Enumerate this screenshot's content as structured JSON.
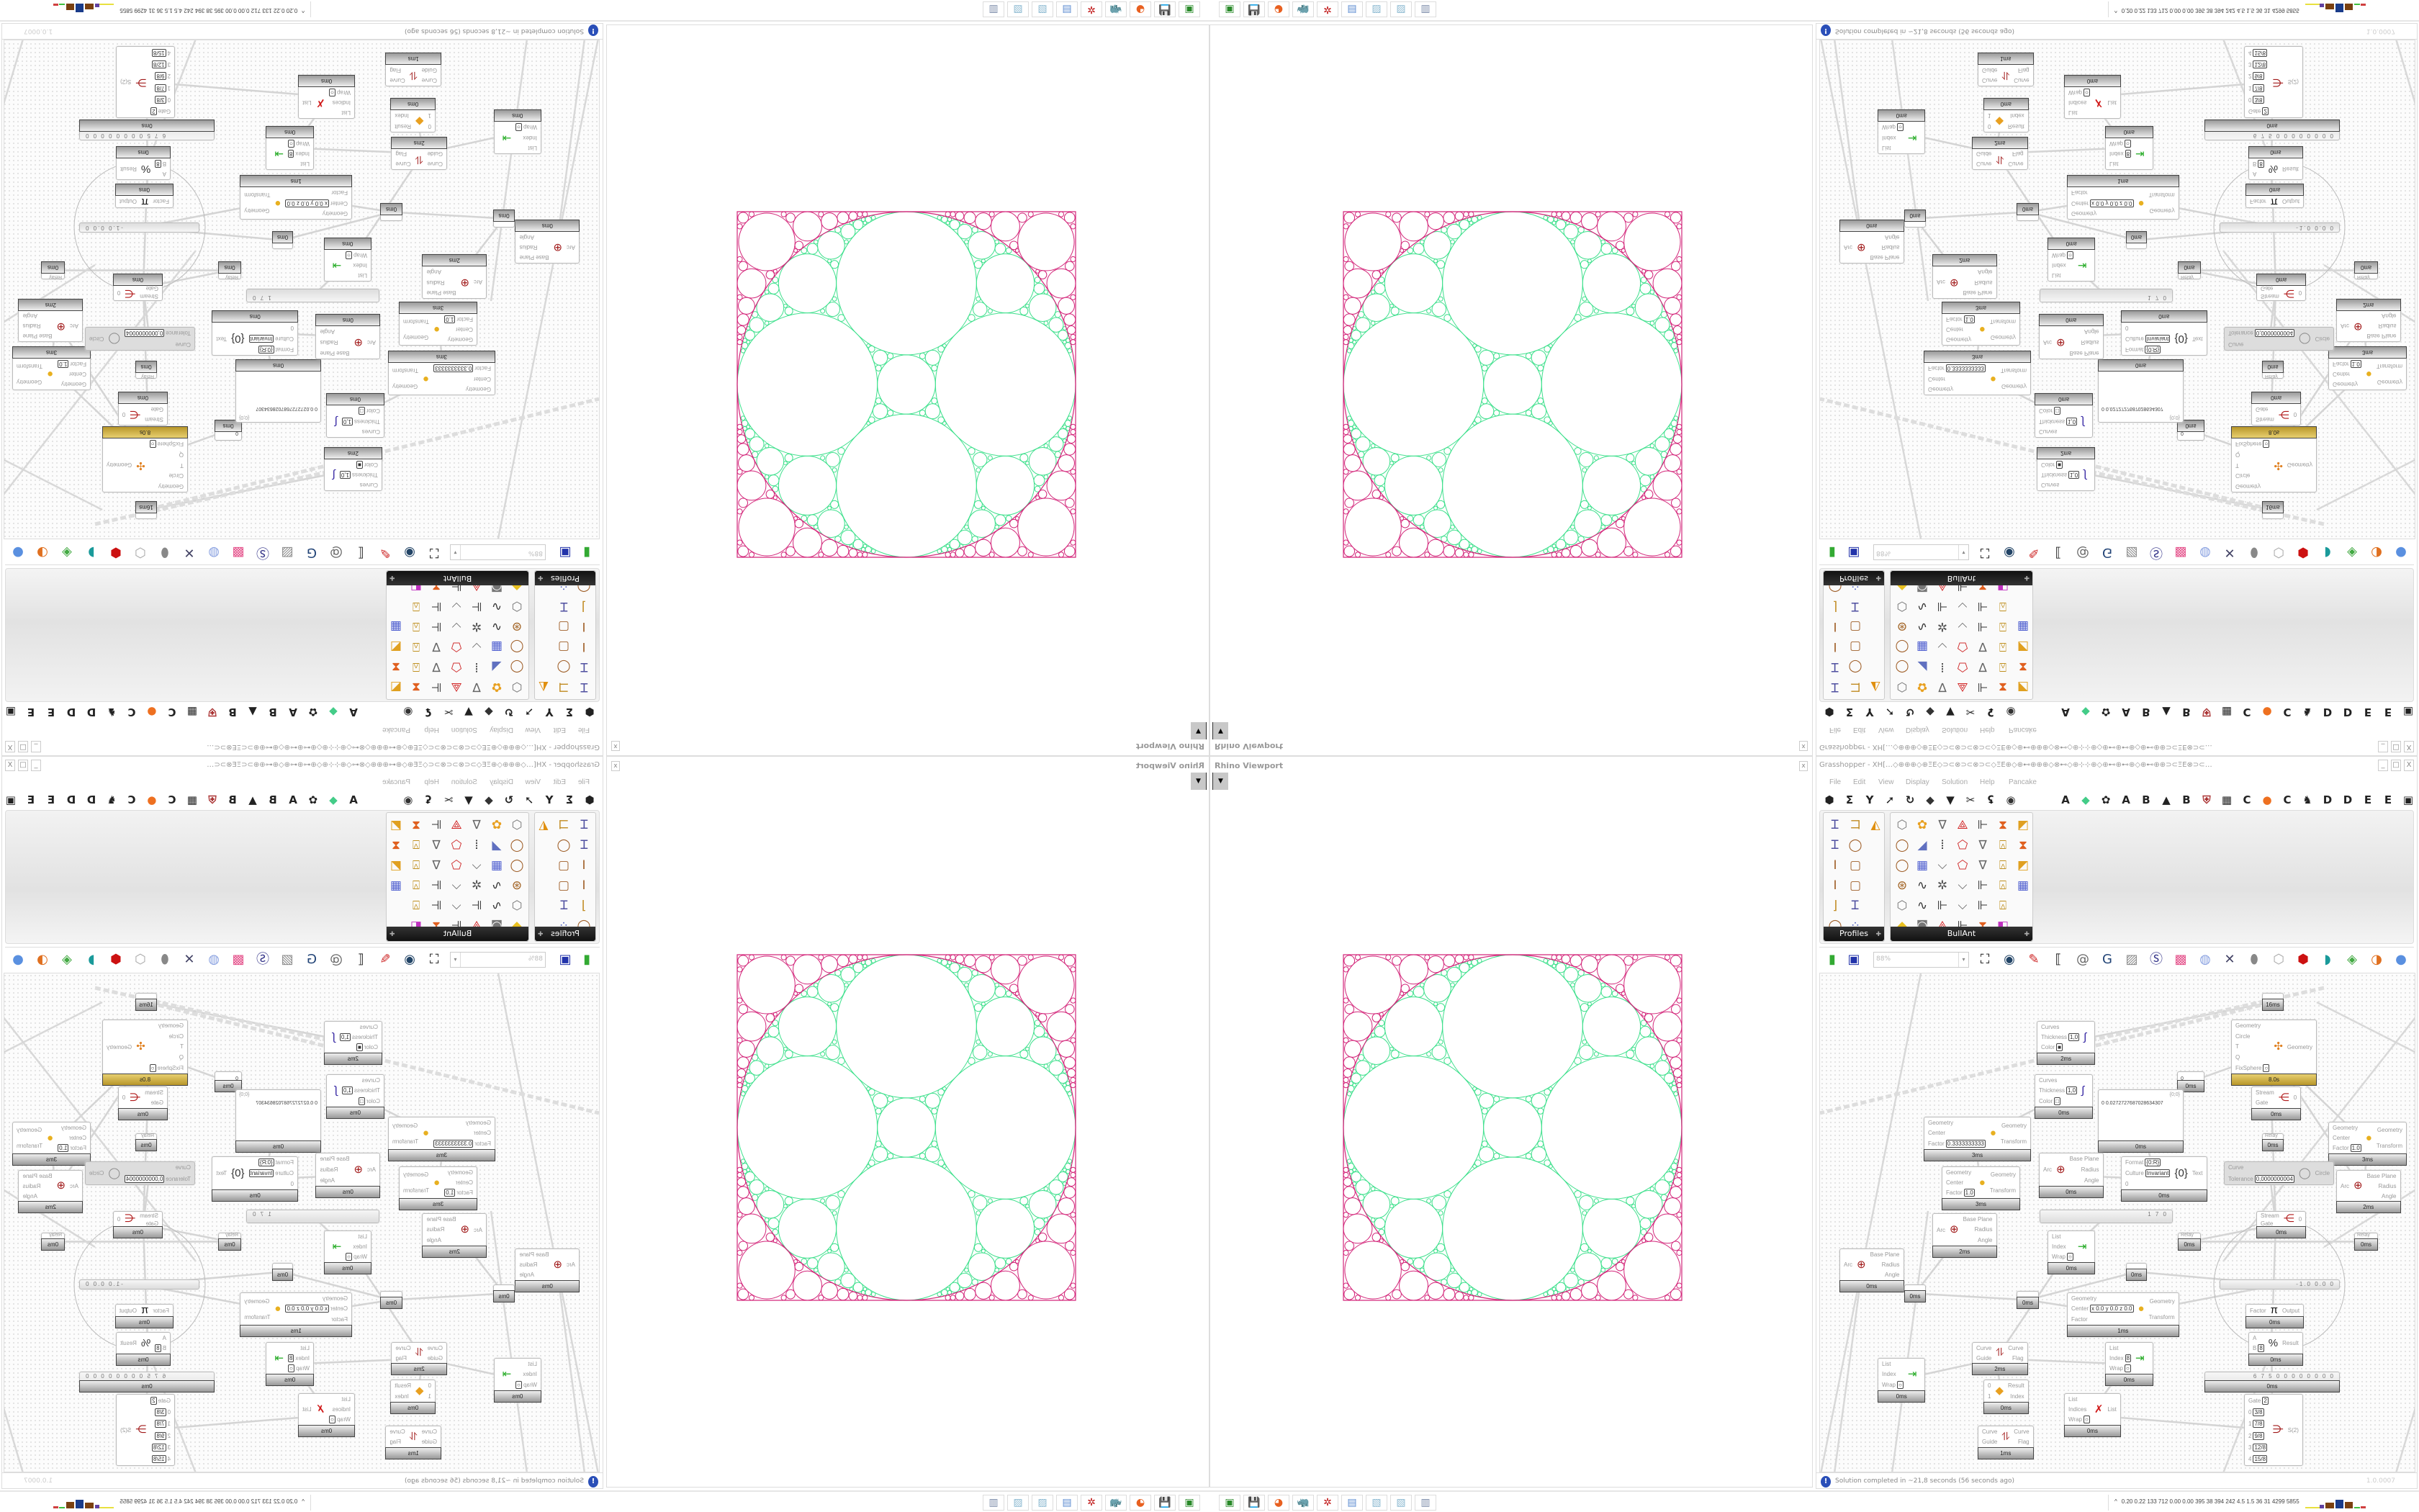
{
  "viewport": {
    "title": "Rhino Viewport",
    "close_glyph": "x",
    "menu_glyph": "▼"
  },
  "grasshopper": {
    "title": "Grasshopper - XH[…◇⊕⊕⊕◇⊕ΞΕ◇⊃⊂⊗⊃⊂⊗⊃⊂◇ΞΕ⊕◇⊕⊷⊕⊕⊕◇⊗⊷◇⊕⊹⊹⊕◇⊕⊷⊕⊷⊕◇⊕⊷⊕⊕⊃⊂ΞΕ⊗⊃⊂…",
    "window_buttons": [
      "_",
      "□",
      "X"
    ],
    "menu": [
      "File",
      "Edit",
      "View",
      "Display",
      "Solution",
      "Help",
      "Pancake"
    ],
    "tab_icons_left": [
      {
        "name": "hexagon-icon",
        "glyph": "⬢"
      },
      {
        "name": "sigma-icon",
        "glyph": "Σ"
      },
      {
        "name": "y-split-icon",
        "glyph": "Y"
      },
      {
        "name": "arrow-icon",
        "glyph": "➚"
      },
      {
        "name": "loop-icon",
        "glyph": "↻"
      },
      {
        "name": "cube-icon",
        "glyph": "◆"
      },
      {
        "name": "funnel-icon",
        "glyph": "▼"
      },
      {
        "name": "scissors-icon",
        "glyph": "✂"
      },
      {
        "name": "hook-icon",
        "glyph": "ʢ"
      },
      {
        "name": "eye-icon",
        "glyph": "◉"
      }
    ],
    "tab_icons_right": [
      {
        "name": "tab-a-icon",
        "glyph": "A"
      },
      {
        "name": "crystal-icon",
        "glyph": "◆"
      },
      {
        "name": "gear-flower-icon",
        "glyph": "✿"
      },
      {
        "name": "tab-a-icon",
        "glyph": "A"
      },
      {
        "name": "tab-b-icon",
        "glyph": "B"
      },
      {
        "name": "mountain-icon",
        "glyph": "▲"
      },
      {
        "name": "tab-b-icon",
        "glyph": "B"
      },
      {
        "name": "shield-icon",
        "glyph": "⛨"
      },
      {
        "name": "grid-icon",
        "glyph": "▦"
      },
      {
        "name": "tab-c-icon",
        "glyph": "C"
      },
      {
        "name": "orange-dot-icon",
        "glyph": "●"
      },
      {
        "name": "tab-c-icon",
        "glyph": "C"
      },
      {
        "name": "rooster-icon",
        "glyph": "♞"
      },
      {
        "name": "tab-d-icon",
        "glyph": "D"
      },
      {
        "name": "tab-d-icon",
        "glyph": "D"
      },
      {
        "name": "tab-e-icon",
        "glyph": "E"
      },
      {
        "name": "tab-e-icon",
        "glyph": "E"
      },
      {
        "name": "grid-box-icon",
        "glyph": "▣"
      }
    ],
    "palettes": [
      {
        "label": "Profiles",
        "cols": 3,
        "expander": "✚",
        "icons": [
          "i-beam-profile-icon",
          "c-channel-profile-icon",
          "folded-plate-icon",
          "i-beam-profile-icon",
          "ring-profile-icon",
          "",
          "i-section-icon",
          "rect-section-icon",
          "",
          "i-section-icon",
          "rect-section-icon",
          "",
          "angle-profile-icon",
          "i-beam-profile-icon",
          "",
          "ring-profile-icon",
          "points-icon",
          ""
        ]
      },
      {
        "label": "BullAnt",
        "cols": 7,
        "expander": "✚",
        "icons": [
          "box-icon",
          "flower-icon",
          "v-truss-icon",
          "cone-icon",
          "chain-icon",
          "frame-icon",
          "graph-icon",
          "ring-profile-icon",
          "paper-fold-icon",
          "columns-icon",
          "polygon-icon",
          "v-truss-icon",
          "lock-icon",
          "frame-icon",
          "ring-profile-icon",
          "blue-cube-icon",
          "polyline-icon",
          "polygon-icon",
          "v-truss-icon",
          "lock-icon",
          "graph-icon",
          "sphere-icon",
          "curve-icon",
          "star-node-icon",
          "polyline-icon",
          "chain-icon",
          "lock-icon",
          "blue-cube-icon",
          "box-icon",
          "curve-icon",
          "chain-icon",
          "polyline-icon",
          "chain-icon",
          "lock-icon",
          "",
          "diamond-icon",
          "dial-icon",
          "cone-icon",
          "chain-icon",
          "frame-icon",
          "rainbow-icon",
          ""
        ]
      }
    ],
    "canvas_toolbar": {
      "icons_left": [
        "new-file-icon",
        "save-icon"
      ],
      "zoom": "88%",
      "zoom_arrow": "▾",
      "icons_right": [
        "zoom-extents-icon",
        "preview-eye-icon",
        "sketch-icon",
        "bracket-icon",
        "at-icon",
        "gha-icon",
        "image-icon",
        "search-s-icon",
        "package-icon",
        "bulb-icon",
        "cross-wire-icon",
        "gray-egg-icon",
        "hollow-cube-icon",
        "red-cube-icon",
        "teal-surface-icon",
        "green-surface-icon",
        "orange-sphere-icon",
        "blue-sphere-icon"
      ]
    },
    "nodes": [
      {
        "type": "relay",
        "footer": "16ms"
      },
      {
        "type": "component",
        "in": [
          "Curves",
          "Thickness",
          "Color"
        ],
        "in_values": [
          "",
          "1,0",
          "■"
        ],
        "out": [],
        "icon": "custom-preview-icon",
        "footer": "2ms"
      },
      {
        "type": "component",
        "in": [
          "Geometry",
          "Circle",
          "T",
          "Q",
          "FixSphere"
        ],
        "in_values": [
          "",
          "",
          "",
          "",
          "○"
        ],
        "out": [
          "Geometry"
        ],
        "icon": "kangaroo-solver-icon",
        "footer": "8.0s",
        "gold": true
      },
      {
        "type": "panel",
        "text": "0",
        "footer": "0ms"
      },
      {
        "type": "component",
        "in": [
          "Curves",
          "Thickness",
          "Color"
        ],
        "in_values": [
          "",
          "1,0",
          "□"
        ],
        "out": [],
        "icon": "custom-preview-icon",
        "footer": "0ms"
      },
      {
        "type": "panel",
        "header": "{0;0}",
        "text": "0  0.0272727687028634307",
        "footer": "0ms"
      },
      {
        "type": "component",
        "in": [
          "Stream",
          "Gate"
        ],
        "in_values": [
          "",
          ""
        ],
        "out": [
          "0"
        ],
        "icon": "stream-gate-icon",
        "footer": "0ms"
      },
      {
        "type": "component",
        "in": [
          "Geometry",
          "Center",
          "Factor"
        ],
        "in_values": [
          "",
          "",
          "0.3333333333"
        ],
        "out": [
          "Geometry",
          "Transform"
        ],
        "icon": "scale-icon",
        "footer": "3ms"
      },
      {
        "type": "relay",
        "label": "Relay",
        "footer": "0ms"
      },
      {
        "type": "component",
        "in": [
          "Geometry",
          "Center",
          "Factor"
        ],
        "in_values": [
          "",
          "",
          "1.0"
        ],
        "out": [
          "Geometry",
          "Transform"
        ],
        "icon": "scale-icon",
        "footer": "3ms"
      },
      {
        "type": "component",
        "in": [
          "Arc"
        ],
        "in_values": [
          ""
        ],
        "out": [
          "Base Plane",
          "Radius",
          "Angle"
        ],
        "icon": "deconstruct-arc-icon",
        "footer": "0ms"
      },
      {
        "type": "component",
        "in": [
          "Format",
          "Culture",
          "0"
        ],
        "in_values": [
          "{0:R}",
          "Invariant",
          ""
        ],
        "out": [
          "Text"
        ],
        "icon": "format-icon",
        "footer": "0ms"
      },
      {
        "type": "component",
        "in": [
          "Curve",
          "Tolerance"
        ],
        "in_values": [
          "",
          "0,0000000004"
        ],
        "out": [
          "Circle"
        ],
        "icon": "circle-fit-icon",
        "disabled": true
      },
      {
        "type": "component",
        "in": [
          "Geometry",
          "Center",
          "Factor"
        ],
        "in_values": [
          "",
          "",
          "1.0"
        ],
        "out": [
          "Geometry",
          "Transform"
        ],
        "icon": "scale-icon",
        "footer": "3ms"
      },
      {
        "type": "component",
        "in": [
          "Arc"
        ],
        "in_values": [
          ""
        ],
        "out": [
          "Base Plane",
          "Radius",
          "Angle"
        ],
        "icon": "deconstruct-arc-icon",
        "footer": "2ms"
      },
      {
        "type": "slider",
        "text": "1 7 0"
      },
      {
        "type": "component",
        "in": [
          "Arc"
        ],
        "in_values": [
          ""
        ],
        "out": [
          "Base Plane",
          "Radius",
          "Angle"
        ],
        "icon": "deconstruct-arc-icon",
        "footer": "2ms"
      },
      {
        "type": "component",
        "in": [
          "Arc"
        ],
        "in_values": [
          ""
        ],
        "out": [
          "Base Plane",
          "Radius",
          "Angle"
        ],
        "icon": "deconstruct-arc-icon",
        "footer": "0ms"
      },
      {
        "type": "relay",
        "footer": "0ms"
      },
      {
        "type": "component",
        "in": [
          "List",
          "Index",
          "Wrap"
        ],
        "in_values": [
          "",
          "",
          "○"
        ],
        "out": [],
        "icon": "list-item-icon",
        "footer": "0ms"
      },
      {
        "type": "relay",
        "footer": "0ms"
      },
      {
        "type": "relay",
        "footer": "0ms"
      },
      {
        "type": "relay",
        "label": "Relay",
        "footer": "0ms"
      },
      {
        "type": "relay",
        "label": "Relay",
        "footer": "0ms"
      },
      {
        "type": "component",
        "in": [
          "Stream",
          "Gate"
        ],
        "in_values": [
          "",
          ""
        ],
        "out": [
          "0"
        ],
        "icon": "stream-gate-icon",
        "footer": "0ms"
      },
      {
        "type": "slider",
        "text": "-1.0  0.0  0"
      },
      {
        "type": "component",
        "in": [
          "Geometry",
          "Center",
          "Factor"
        ],
        "in_values": [
          "",
          "x 0.0 y 0.0 z 0.0",
          ""
        ],
        "out": [
          "Geometry",
          "Transform"
        ],
        "icon": "scale-icon",
        "footer": "1ms"
      },
      {
        "type": "component",
        "in": [
          "Factor"
        ],
        "in_values": [
          ""
        ],
        "out": [
          "Output"
        ],
        "icon": "pi-icon",
        "footer": "0ms"
      },
      {
        "type": "component",
        "in": [
          "A",
          "B"
        ],
        "in_values": [
          "",
          "8"
        ],
        "out": [
          "Result"
        ],
        "icon": "division-icon",
        "footer": "0ms"
      },
      {
        "type": "component",
        "in": [
          "Curve",
          "Guide"
        ],
        "in_values": [
          "",
          ""
        ],
        "out": [
          "Curve",
          "Flag"
        ],
        "icon": "flip-curve-icon",
        "footer": "2ms"
      },
      {
        "type": "component",
        "in": [
          "List",
          "Index",
          "Wrap"
        ],
        "in_values": [
          "",
          "8",
          "○"
        ],
        "out": [],
        "icon": "list-item-icon",
        "footer": "0ms"
      },
      {
        "type": "component",
        "in": [
          "List",
          "Index",
          "Wrap"
        ],
        "in_values": [
          "",
          "",
          "○"
        ],
        "out": [],
        "icon": "list-item-icon",
        "footer": "0ms"
      },
      {
        "type": "slider",
        "text": "6 7 5 0 0 0 0 0 0 0 0",
        "footer": "0ms"
      },
      {
        "type": "component",
        "in": [
          "0",
          "1"
        ],
        "in_values": [
          "",
          ""
        ],
        "out": [
          "Result",
          "Index"
        ],
        "icon": "sort-icon",
        "footer": "0ms"
      },
      {
        "type": "component",
        "in": [
          "List",
          "Indices",
          "Wrap"
        ],
        "in_values": [
          "",
          "",
          "○"
        ],
        "out": [
          "List"
        ],
        "icon": "cull-index-icon",
        "footer": "0ms"
      },
      {
        "type": "component",
        "in": [
          "Gate",
          "0",
          "1",
          "2",
          "3",
          "4"
        ],
        "in_values": [
          "2",
          "3/8",
          "7/8",
          "9/8",
          "12/8",
          "15/8"
        ],
        "out": [
          "S(2)"
        ],
        "icon": "stream-filter-icon"
      },
      {
        "type": "component",
        "in": [
          "Curve",
          "Guide"
        ],
        "in_values": [
          "",
          ""
        ],
        "out": [
          "Curve",
          "Flag"
        ],
        "icon": "flip-curve-icon",
        "footer": "1ms"
      }
    ],
    "status": {
      "icon_glyph": "!",
      "text": "Solution completed in ~21,8 seconds (56 seconds ago)",
      "version": "1.0.0007"
    }
  },
  "taskbar": {
    "items": [
      {
        "name": "terminal-app-icon",
        "glyph": "▣"
      },
      {
        "name": "save64-app-icon",
        "glyph": "💾"
      },
      {
        "name": "firefox-app-icon",
        "glyph": "◕"
      },
      {
        "name": "rhino-app-icon",
        "glyph": "🦏"
      },
      {
        "name": "settings-app-icon",
        "glyph": "✲"
      },
      {
        "name": "calculator-app-icon",
        "glyph": "▤"
      },
      {
        "name": "notepad-app-icon",
        "glyph": "▧"
      },
      {
        "name": "notepad-app-icon",
        "glyph": "▧"
      },
      {
        "name": "printer-app-icon",
        "glyph": "▥"
      }
    ],
    "tray_caret": "^",
    "tray_stats": "0.20 0.22 133 712 0.00 0.00 395 38 394 242 4.5 1.5 36 31 4299 5855"
  },
  "colors": {
    "packing_inner": "#3ee08c",
    "packing_outer": "#d3267a",
    "gold_footer": "#c9a83a",
    "palette_footer": "#1a1a1a"
  }
}
